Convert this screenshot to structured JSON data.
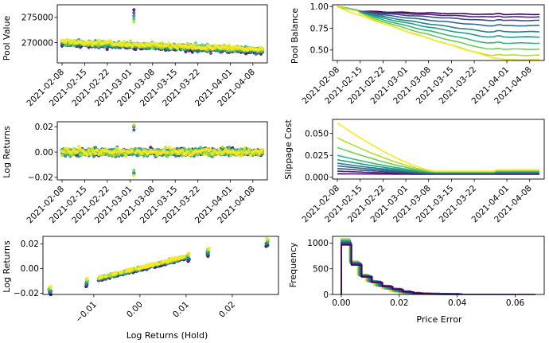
{
  "palette": [
    "#440154",
    "#482878",
    "#3e4989",
    "#31688e",
    "#26828e",
    "#1f9e89",
    "#35b779",
    "#6ece58",
    "#b5de2b",
    "#fde725"
  ],
  "chart_data": [
    {
      "id": "pool_value",
      "type": "scatter",
      "ylabel": "Pool Value",
      "xlabel": "",
      "x_tick_labels": [
        "2021-02-08",
        "2021-02-15",
        "2021-02-22",
        "2021-03-01",
        "2021-03-08",
        "2021-03-15",
        "2021-03-22",
        "2021-04-01",
        "2021-04-08"
      ],
      "y_tick_labels": [
        "270000",
        "275000"
      ],
      "y_ticks": [
        270000,
        275000
      ],
      "ylim": [
        266000,
        277500
      ],
      "x_range_days": [
        0,
        62
      ],
      "baseline_start": 270000,
      "baseline_end": 268500,
      "spike": {
        "day": 22,
        "value": 276500
      }
    },
    {
      "id": "pool_balance",
      "type": "line",
      "ylabel": "Pool Balance",
      "xlabel": "",
      "x_tick_labels": [
        "2021-02-08",
        "2021-02-15",
        "2021-02-22",
        "2021-03-01",
        "2021-03-08",
        "2021-03-15",
        "2021-03-22",
        "2021-04-01",
        "2021-04-08"
      ],
      "y_tick_labels": [
        "0.50",
        "0.75",
        "1.00"
      ],
      "y_ticks": [
        0.5,
        0.75,
        1.0
      ],
      "ylim": [
        0.38,
        1.02
      ],
      "series_final_values": [
        0.91,
        0.88,
        0.84,
        0.78,
        0.71,
        0.65,
        0.58,
        0.51,
        0.44,
        0.39
      ]
    },
    {
      "id": "log_returns",
      "type": "scatter",
      "ylabel": "Log Returns",
      "xlabel": "",
      "x_tick_labels": [
        "2021-02-08",
        "2021-02-15",
        "2021-02-22",
        "2021-03-01",
        "2021-03-08",
        "2021-03-15",
        "2021-03-22",
        "2021-04-01",
        "2021-04-08"
      ],
      "y_tick_labels": [
        "−0.02",
        "0.00",
        "0.02"
      ],
      "y_ticks": [
        -0.02,
        0.0,
        0.02
      ],
      "ylim": [
        -0.022,
        0.024
      ],
      "spike": {
        "day": 22,
        "high": 0.023,
        "low": -0.019
      }
    },
    {
      "id": "slippage_cost",
      "type": "line",
      "ylabel": "Slippage Cost",
      "xlabel": "",
      "x_tick_labels": [
        "2021-02-08",
        "2021-02-15",
        "2021-02-22",
        "2021-03-01",
        "2021-03-08",
        "2021-03-15",
        "2021-03-22",
        "2021-04-01",
        "2021-04-08"
      ],
      "y_tick_labels": [
        "0.000",
        "0.025",
        "0.050"
      ],
      "y_ticks": [
        0.0,
        0.025,
        0.05
      ],
      "ylim": [
        -0.002,
        0.066
      ],
      "series_start_values": [
        0.004,
        0.007,
        0.01,
        0.013,
        0.016,
        0.02,
        0.025,
        0.034,
        0.045,
        0.062
      ]
    },
    {
      "id": "returns_vs_hold",
      "type": "scatter",
      "ylabel": "Log Returns",
      "xlabel": "Log Returns (Hold)",
      "x_tick_labels": [
        "−0.01",
        "0.00",
        "0.01",
        "0.02"
      ],
      "x_ticks": [
        -0.01,
        0.0,
        0.01,
        0.02
      ],
      "xlim": [
        -0.021,
        0.03
      ],
      "y_tick_labels": [
        "−0.02",
        "0.00",
        "0.02"
      ],
      "y_ticks": [
        -0.02,
        0.0,
        0.02
      ],
      "ylim": [
        -0.021,
        0.026
      ]
    },
    {
      "id": "price_error_hist",
      "type": "histogram",
      "ylabel": "Frequency",
      "xlabel": "Price Error",
      "x_tick_labels": [
        "0.00",
        "0.02",
        "0.04",
        "0.06"
      ],
      "x_ticks": [
        0.0,
        0.02,
        0.04,
        0.06
      ],
      "xlim": [
        -0.003,
        0.07
      ],
      "y_tick_labels": [
        "0",
        "500",
        "1000"
      ],
      "y_ticks": [
        0,
        500,
        1000
      ],
      "ylim": [
        0,
        1130
      ],
      "bin_width": 0.0028,
      "bin_counts": [
        1080,
        640,
        380,
        260,
        170,
        110,
        55,
        25,
        12,
        6,
        3,
        1
      ]
    }
  ]
}
